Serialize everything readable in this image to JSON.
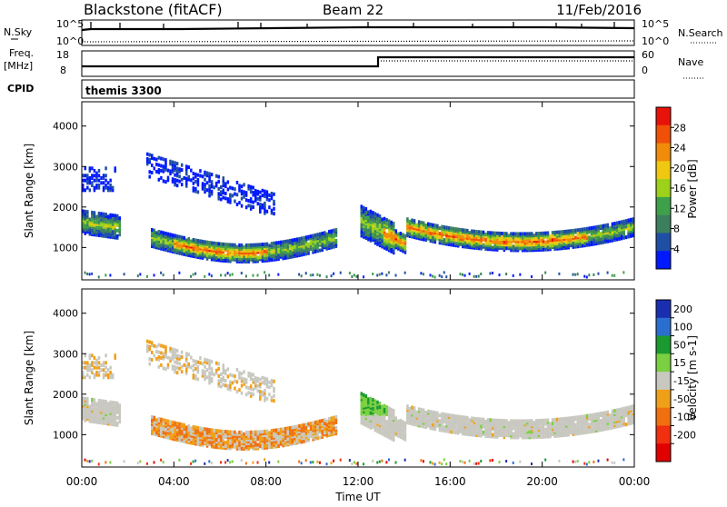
{
  "header": {
    "station": "Blackstone (fitACF)",
    "beam": "Beam 22",
    "date": "11/Feb/2016"
  },
  "strips": {
    "nsky_label": "N.Sky",
    "nsearch_label": "N.Search",
    "freq_label": "Freq.",
    "freq_unit": "[MHz]",
    "nave_label": "Nave",
    "cpid_label": "CPID",
    "cpid_value": "themis 3300",
    "noise_ticks": [
      "10^5",
      "10^0"
    ],
    "freq_ticks": [
      "18",
      "8"
    ],
    "nave_ticks": [
      "60",
      "0"
    ]
  },
  "chart_data": [
    {
      "type": "heatmap",
      "name": "Power",
      "ylabel": "Slant Range [km]",
      "xlabel": "Time UT",
      "x_ticks": [
        "00:00",
        "04:00",
        "08:00",
        "12:00",
        "16:00",
        "20:00",
        "00:00"
      ],
      "y_ticks": [
        1000,
        2000,
        3000,
        4000
      ],
      "ylim": [
        200,
        4600
      ],
      "colorbar": {
        "label": "Power [dB]",
        "ticks": [
          4,
          8,
          12,
          16,
          20,
          24,
          28
        ],
        "range": [
          0,
          32
        ],
        "colors": [
          "#0019ff",
          "#1f4fa5",
          "#3c7f5f",
          "#3fa04a",
          "#9dd11a",
          "#f0c812",
          "#f08c0a",
          "#f05008",
          "#e8120a"
        ]
      }
    },
    {
      "type": "heatmap",
      "name": "Velocity",
      "ylabel": "Slant Range [km]",
      "xlabel": "Time UT",
      "x_ticks": [
        "00:00",
        "04:00",
        "08:00",
        "12:00",
        "16:00",
        "20:00",
        "00:00"
      ],
      "y_ticks": [
        1000,
        2000,
        3000,
        4000
      ],
      "ylim": [
        200,
        4600
      ],
      "colorbar": {
        "label": "Velocity [m s-1]",
        "ticks": [
          "200",
          "100",
          "50",
          "15",
          "-15",
          "-50",
          "-100",
          "-200"
        ],
        "colors": [
          "#1a2fb0",
          "#2a6fd0",
          "#1a9a30",
          "#7ad040",
          "#c8c8c0",
          "#f0a018",
          "#f07010",
          "#f03010",
          "#e00000"
        ]
      }
    }
  ]
}
